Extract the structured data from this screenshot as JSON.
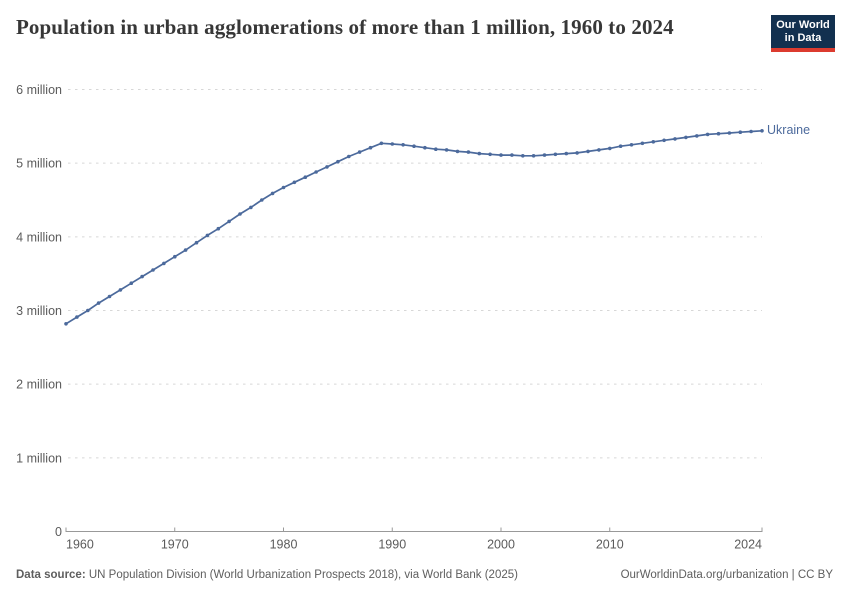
{
  "header": {
    "title": "Population in urban agglomerations of more than 1 million, 1960 to 2024",
    "logo": {
      "line1": "Our World",
      "line2": "in Data"
    }
  },
  "colors": {
    "line": "#4c6a9c",
    "entity_label": "#4c6a9c",
    "grid": "#d7d7d7",
    "axis": "#999999",
    "tick_text": "#5b5b5b",
    "title_text": "#373737",
    "footer_text": "#5e5e5e",
    "logo_bg": "#12304f",
    "logo_accent": "#dc3b2f"
  },
  "chart_data": {
    "type": "line",
    "title": "Population in urban agglomerations of more than 1 million, 1960 to 2024",
    "entity": "Ukraine",
    "unit": "people",
    "xlim": [
      1960,
      2024
    ],
    "ylim": [
      0,
      6000000
    ],
    "grid": "horizontal-dashed",
    "legend_position": "end-of-line-label",
    "x_ticks": [
      1960,
      1970,
      1980,
      1990,
      2000,
      2010,
      2024
    ],
    "y_ticks": [
      {
        "value": 0,
        "label": "0"
      },
      {
        "value": 1000000,
        "label": "1 million"
      },
      {
        "value": 2000000,
        "label": "2 million"
      },
      {
        "value": 3000000,
        "label": "3 million"
      },
      {
        "value": 4000000,
        "label": "4 million"
      },
      {
        "value": 5000000,
        "label": "5 million"
      },
      {
        "value": 6000000,
        "label": "6 million"
      }
    ],
    "x": [
      1960,
      1961,
      1962,
      1963,
      1964,
      1965,
      1966,
      1967,
      1968,
      1969,
      1970,
      1971,
      1972,
      1973,
      1974,
      1975,
      1976,
      1977,
      1978,
      1979,
      1980,
      1981,
      1982,
      1983,
      1984,
      1985,
      1986,
      1987,
      1988,
      1989,
      1990,
      1991,
      1992,
      1993,
      1994,
      1995,
      1996,
      1997,
      1998,
      1999,
      2000,
      2001,
      2002,
      2003,
      2004,
      2005,
      2006,
      2007,
      2008,
      2009,
      2010,
      2011,
      2012,
      2013,
      2014,
      2015,
      2016,
      2017,
      2018,
      2019,
      2020,
      2021,
      2022,
      2023,
      2024
    ],
    "series": [
      {
        "name": "Ukraine",
        "values": [
          2820000,
          2910000,
          3000000,
          3100000,
          3190000,
          3280000,
          3370000,
          3460000,
          3550000,
          3640000,
          3730000,
          3820000,
          3920000,
          4020000,
          4110000,
          4210000,
          4310000,
          4400000,
          4500000,
          4590000,
          4670000,
          4740000,
          4810000,
          4880000,
          4950000,
          5020000,
          5090000,
          5150000,
          5210000,
          5270000,
          5260000,
          5250000,
          5230000,
          5210000,
          5190000,
          5180000,
          5160000,
          5150000,
          5130000,
          5120000,
          5110000,
          5110000,
          5100000,
          5100000,
          5110000,
          5120000,
          5130000,
          5140000,
          5160000,
          5180000,
          5200000,
          5230000,
          5250000,
          5270000,
          5290000,
          5310000,
          5330000,
          5350000,
          5370000,
          5390000,
          5400000,
          5410000,
          5420000,
          5430000,
          5440000
        ]
      }
    ]
  },
  "footer": {
    "source_label": "Data source:",
    "source_text": " UN Population Division (World Urbanization Prospects 2018), via World Bank (2025)",
    "rights": "OurWorldinData.org/urbanization | CC BY"
  }
}
